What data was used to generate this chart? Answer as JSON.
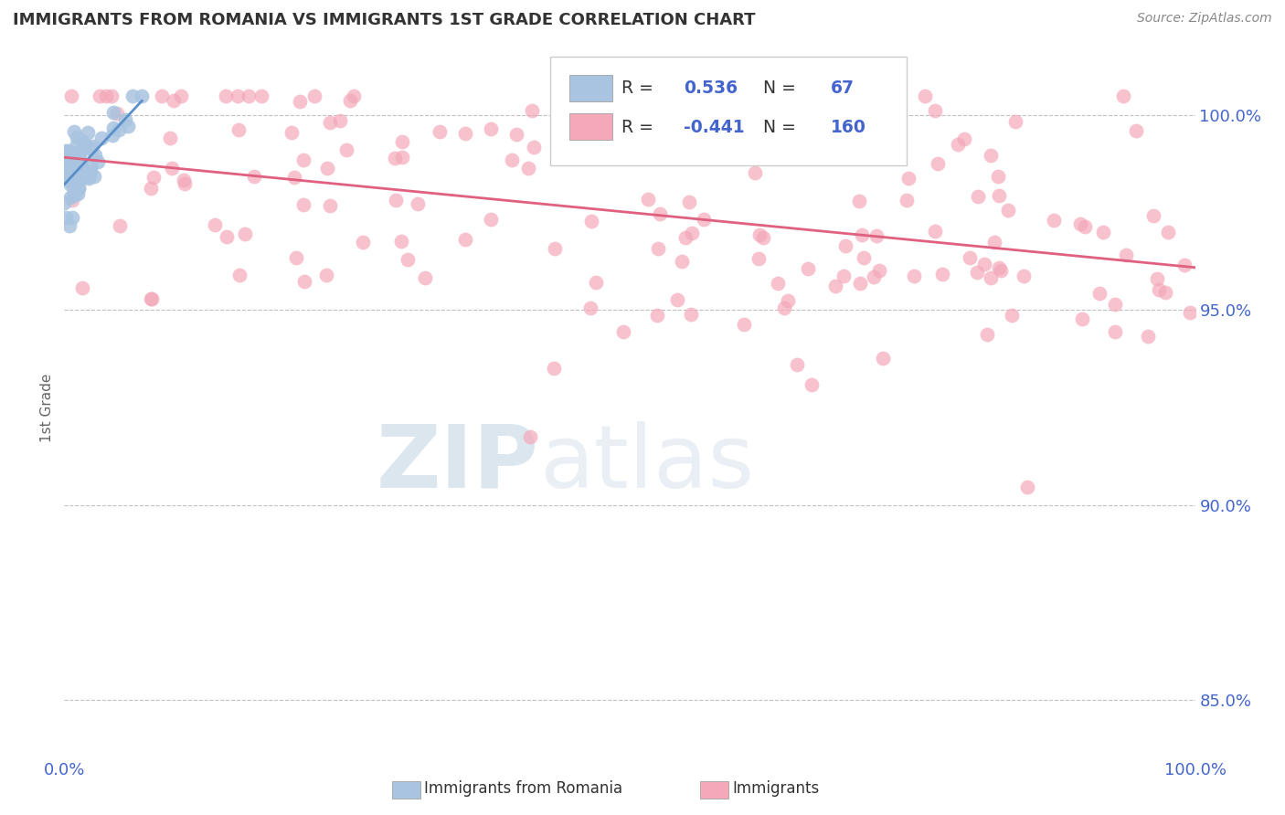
{
  "title": "IMMIGRANTS FROM ROMANIA VS IMMIGRANTS 1ST GRADE CORRELATION CHART",
  "source_text": "Source: ZipAtlas.com",
  "ylabel": "1st Grade",
  "y_tick_labels": [
    "85.0%",
    "90.0%",
    "95.0%",
    "100.0%"
  ],
  "y_tick_values": [
    0.85,
    0.9,
    0.95,
    1.0
  ],
  "xlim": [
    0.0,
    1.0
  ],
  "ylim": [
    0.835,
    1.015
  ],
  "legend_r_values": [
    "0.536",
    "-0.441"
  ],
  "legend_n_values": [
    "67",
    "160"
  ],
  "blue_color": "#a8c4e0",
  "pink_color": "#f4a8b8",
  "blue_line_color": "#5b8fc9",
  "pink_line_color": "#e06080",
  "title_color": "#333333",
  "axis_label_color": "#4466cc",
  "grid_color": "#c0c0c0",
  "background_color": "#ffffff",
  "blue_n": 67,
  "pink_n": 160,
  "watermark_color": "#d0e4f0",
  "watermark_alpha": 0.6
}
